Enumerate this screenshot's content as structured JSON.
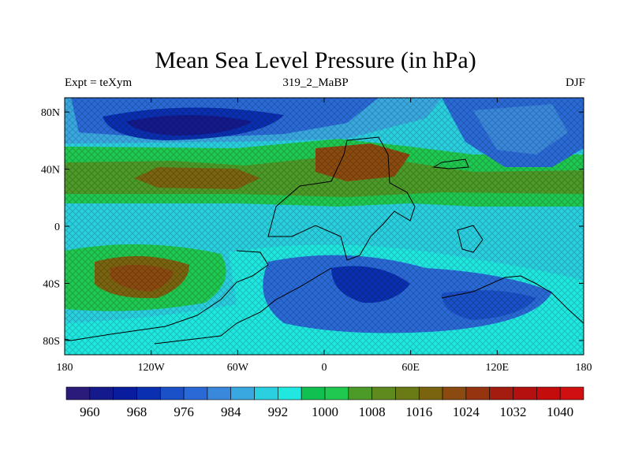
{
  "title": "Mean Sea Level Pressure (in hPa)",
  "subtitle_left": "Expt = teXym",
  "subtitle_center": "319_2_MaBP",
  "subtitle_right": "DJF",
  "chart_data": {
    "type": "heatmap",
    "title": "Mean Sea Level Pressure (in hPa)",
    "x_ticks": [
      "180",
      "120W",
      "60W",
      "0",
      "60E",
      "120E",
      "180"
    ],
    "y_ticks": [
      "80N",
      "40N",
      "0",
      "40S",
      "80S"
    ],
    "xlim": [
      -180,
      180
    ],
    "ylim": [
      -90,
      90
    ],
    "colorbar": {
      "levels": [
        960,
        964,
        968,
        972,
        976,
        980,
        984,
        988,
        992,
        996,
        1000,
        1004,
        1008,
        1012,
        1016,
        1020,
        1024,
        1028,
        1032,
        1036,
        1040
      ],
      "labels": [
        "960",
        "968",
        "976",
        "984",
        "992",
        "1000",
        "1008",
        "1016",
        "1024",
        "1032",
        "1040"
      ],
      "colors": [
        "#2a1a7a",
        "#141a8c",
        "#0a1c9e",
        "#0a2fb0",
        "#1a50c8",
        "#2a6ad6",
        "#3a88dc",
        "#3aa8e0",
        "#2ad0e0",
        "#20e8e0",
        "#10c050",
        "#20c850",
        "#4c9a28",
        "#5e8a1e",
        "#6a7a14",
        "#7a6410",
        "#8a4a10",
        "#963410",
        "#a41c10",
        "#b41010",
        "#c40c0c",
        "#d01010"
      ]
    },
    "regions": [
      {
        "name": "north-pacific-low",
        "value": 968
      },
      {
        "name": "north-atlantic-low",
        "value": 984
      },
      {
        "name": "subtropical-high-north",
        "value": 1020
      },
      {
        "name": "south-pacific-high",
        "value": 1020
      },
      {
        "name": "southern-ocean-low",
        "value": 980
      },
      {
        "name": "tropics",
        "value": 1000
      }
    ]
  }
}
